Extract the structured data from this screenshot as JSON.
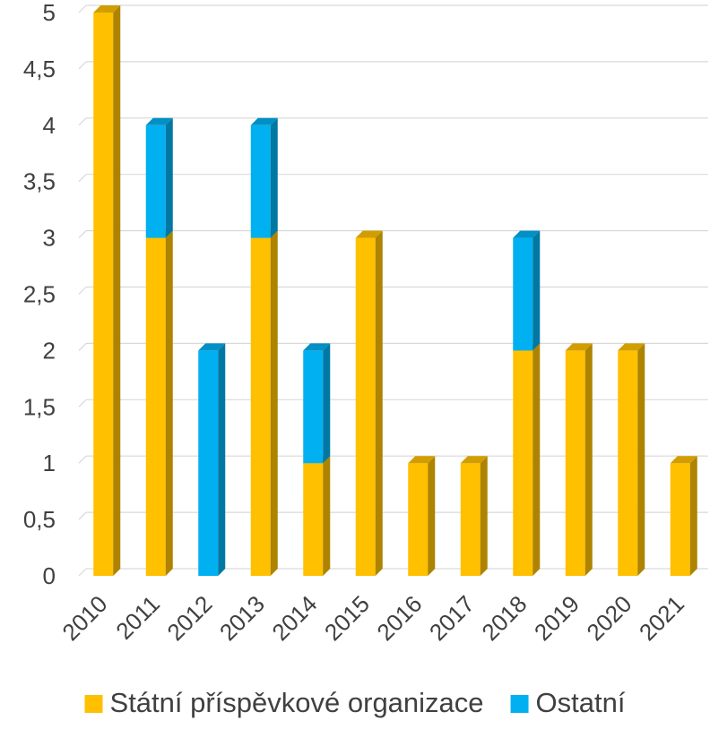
{
  "chart_data": {
    "type": "bar",
    "stacked": true,
    "style": "3d-column",
    "categories": [
      "2010",
      "2011",
      "2012",
      "2013",
      "2014",
      "2015",
      "2016",
      "2017",
      "2018",
      "2019",
      "2020",
      "2021"
    ],
    "series": [
      {
        "name": "Státní příspěvkové organizace",
        "color": "#FFC000",
        "values": [
          5,
          3,
          0,
          3,
          1,
          3,
          1,
          1,
          2,
          2,
          2,
          1
        ]
      },
      {
        "name": "Ostatní",
        "color": "#00B0F0",
        "values": [
          0,
          1,
          2,
          1,
          1,
          0,
          0,
          0,
          1,
          0,
          0,
          0
        ]
      }
    ],
    "yticks": [
      "0",
      "0,5",
      "1",
      "1,5",
      "2",
      "2,5",
      "3",
      "3,5",
      "4",
      "4,5",
      "5"
    ],
    "ylim": [
      0,
      5
    ],
    "grid": true,
    "legend_position": "bottom"
  }
}
